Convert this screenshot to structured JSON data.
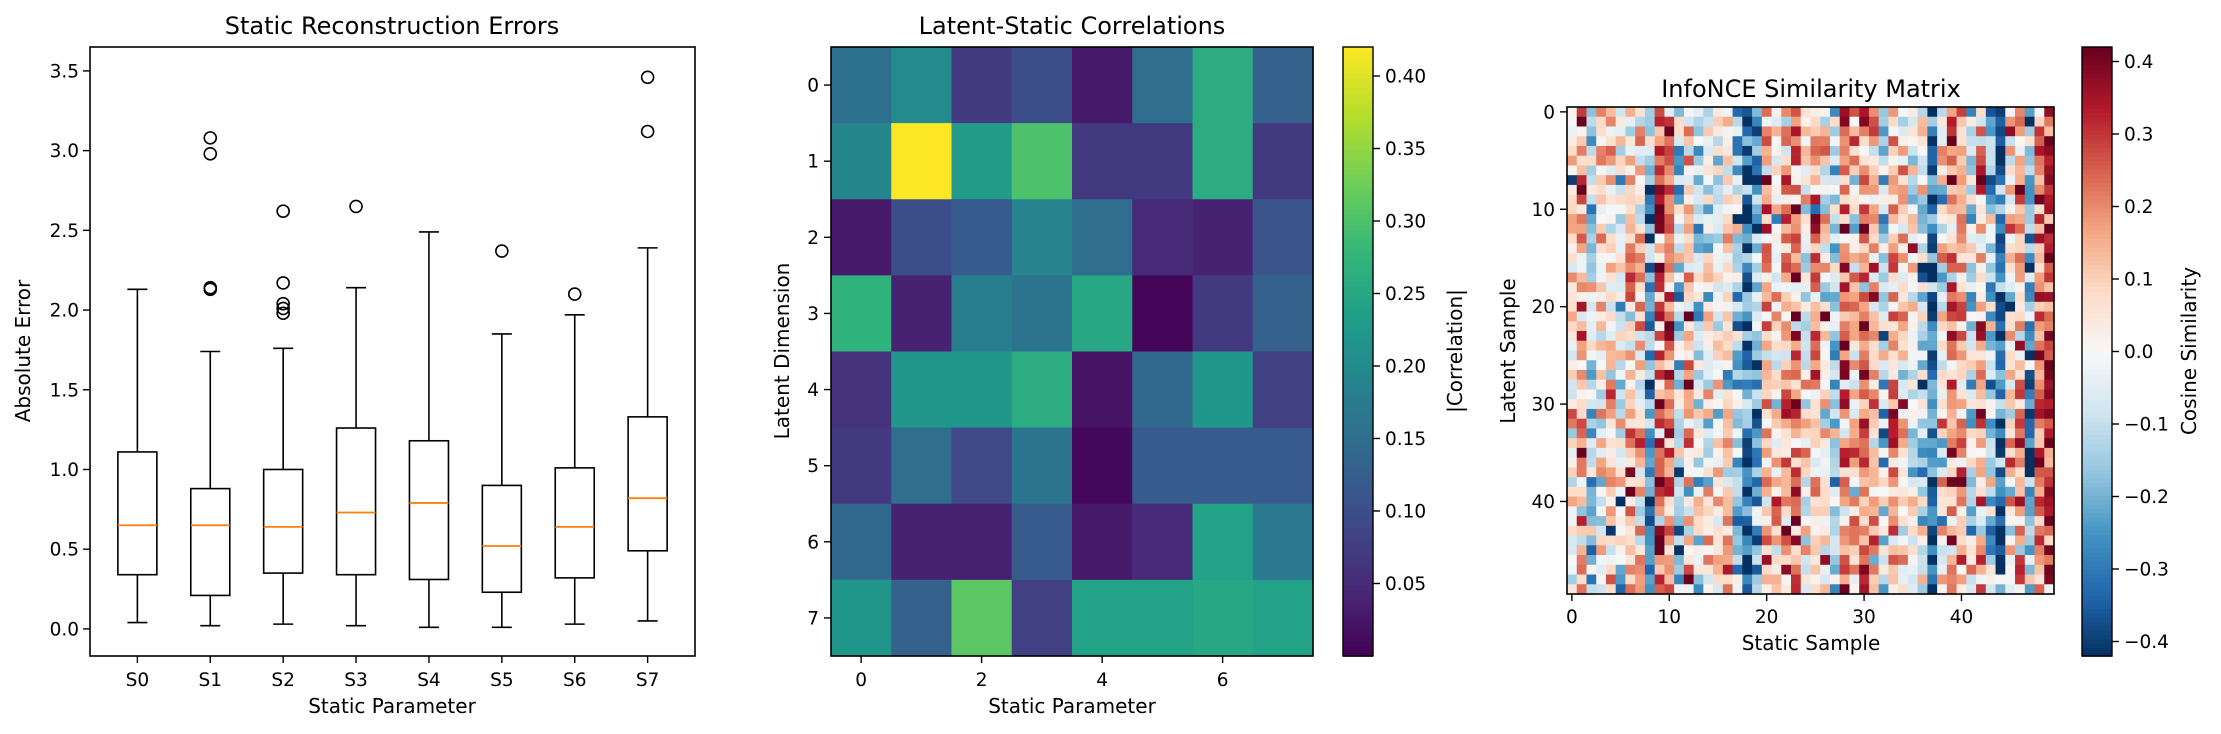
{
  "chart_data": [
    {
      "type": "box",
      "title": "Static Reconstruction Errors",
      "xlabel": "Static Parameter",
      "ylabel": "Absolute Error",
      "ylim": [
        -0.17,
        3.65
      ],
      "yticks": [
        "0.0",
        "0.5",
        "1.0",
        "1.5",
        "2.0",
        "2.5",
        "3.0",
        "3.5"
      ],
      "categories": [
        "S0",
        "S1",
        "S2",
        "S3",
        "S4",
        "S5",
        "S6",
        "S7"
      ],
      "boxes": [
        {
          "whisker_low": 0.04,
          "q1": 0.34,
          "median": 0.65,
          "q3": 1.11,
          "whisker_high": 2.13,
          "outliers": []
        },
        {
          "whisker_low": 0.02,
          "q1": 0.21,
          "median": 0.65,
          "q3": 0.88,
          "whisker_high": 1.74,
          "outliers": [
            2.13,
            2.14,
            2.98,
            3.08
          ]
        },
        {
          "whisker_low": 0.03,
          "q1": 0.35,
          "median": 0.64,
          "q3": 1.0,
          "whisker_high": 1.76,
          "outliers": [
            1.98,
            2.01,
            2.04,
            2.17,
            2.62
          ]
        },
        {
          "whisker_low": 0.02,
          "q1": 0.34,
          "median": 0.73,
          "q3": 1.26,
          "whisker_high": 2.14,
          "outliers": [
            2.65
          ]
        },
        {
          "whisker_low": 0.01,
          "q1": 0.31,
          "median": 0.79,
          "q3": 1.18,
          "whisker_high": 2.49,
          "outliers": []
        },
        {
          "whisker_low": 0.01,
          "q1": 0.23,
          "median": 0.52,
          "q3": 0.9,
          "whisker_high": 1.85,
          "outliers": [
            2.37
          ]
        },
        {
          "whisker_low": 0.03,
          "q1": 0.32,
          "median": 0.64,
          "q3": 1.01,
          "whisker_high": 1.97,
          "outliers": [
            2.1
          ]
        },
        {
          "whisker_low": 0.05,
          "q1": 0.49,
          "median": 0.82,
          "q3": 1.33,
          "whisker_high": 2.39,
          "outliers": [
            3.12,
            3.46
          ]
        }
      ],
      "colors": {
        "box": "#000000",
        "median": "#ff7f0e"
      }
    },
    {
      "type": "heatmap",
      "title": "Latent-Static Correlations",
      "xlabel": "Static Parameter",
      "ylabel": "Latent Dimension",
      "xticks": [
        "0",
        "2",
        "4",
        "6"
      ],
      "yticks": [
        "0",
        "1",
        "2",
        "3",
        "4",
        "5",
        "6",
        "7"
      ],
      "colormap": "viridis",
      "colorbar_label": "|Correlation|",
      "colorbar_ticks": [
        "0.05",
        "0.10",
        "0.15",
        "0.20",
        "0.25",
        "0.30",
        "0.35",
        "0.40"
      ],
      "vmin": 0.0,
      "vmax": 0.42,
      "values": [
        [
          0.155,
          0.2,
          0.07,
          0.1,
          0.03,
          0.15,
          0.26,
          0.13
        ],
        [
          0.195,
          0.42,
          0.23,
          0.3,
          0.07,
          0.07,
          0.26,
          0.07
        ],
        [
          0.03,
          0.1,
          0.12,
          0.19,
          0.15,
          0.05,
          0.04,
          0.11
        ],
        [
          0.27,
          0.04,
          0.18,
          0.16,
          0.25,
          0.005,
          0.07,
          0.13
        ],
        [
          0.06,
          0.22,
          0.22,
          0.26,
          0.02,
          0.14,
          0.22,
          0.08
        ],
        [
          0.07,
          0.15,
          0.09,
          0.16,
          0.01,
          0.12,
          0.12,
          0.12
        ],
        [
          0.14,
          0.04,
          0.04,
          0.12,
          0.03,
          0.05,
          0.24,
          0.17
        ],
        [
          0.22,
          0.13,
          0.31,
          0.08,
          0.24,
          0.24,
          0.25,
          0.24
        ]
      ]
    },
    {
      "type": "heatmap",
      "title": "InfoNCE Similarity Matrix",
      "xlabel": "Static Sample",
      "ylabel": "Latent Sample",
      "rows": 50,
      "cols": 50,
      "xticks": [
        "0",
        "10",
        "20",
        "30",
        "40"
      ],
      "yticks": [
        "0",
        "10",
        "20",
        "30",
        "40"
      ],
      "colormap": "RdBu_r",
      "colorbar_label": "Cosine Similarity",
      "colorbar_ticks": [
        "−0.4",
        "−0.3",
        "−0.2",
        "−0.1",
        "0.0",
        "0.1",
        "0.2",
        "0.3",
        "0.4"
      ],
      "vmin": -0.42,
      "vmax": 0.42,
      "column_means": [
        0.05,
        0.17,
        -0.12,
        0.03,
        0.08,
        -0.03,
        0.12,
        0.05,
        -0.2,
        0.24,
        0.22,
        -0.12,
        0.13,
        -0.08,
        0.02,
        0.0,
        0.08,
        -0.15,
        -0.33,
        -0.2,
        0.12,
        0.05,
        0.12,
        0.18,
        -0.05,
        0.12,
        0.02,
        -0.12,
        0.2,
        0.1,
        0.2,
        0.08,
        -0.12,
        0.15,
        0.08,
        -0.05,
        -0.08,
        -0.33,
        0.05,
        0.2,
        0.14,
        -0.05,
        0.12,
        -0.12,
        -0.3,
        0.05,
        0.15,
        -0.22,
        0.2,
        0.3
      ],
      "noise": 0.13
    }
  ]
}
